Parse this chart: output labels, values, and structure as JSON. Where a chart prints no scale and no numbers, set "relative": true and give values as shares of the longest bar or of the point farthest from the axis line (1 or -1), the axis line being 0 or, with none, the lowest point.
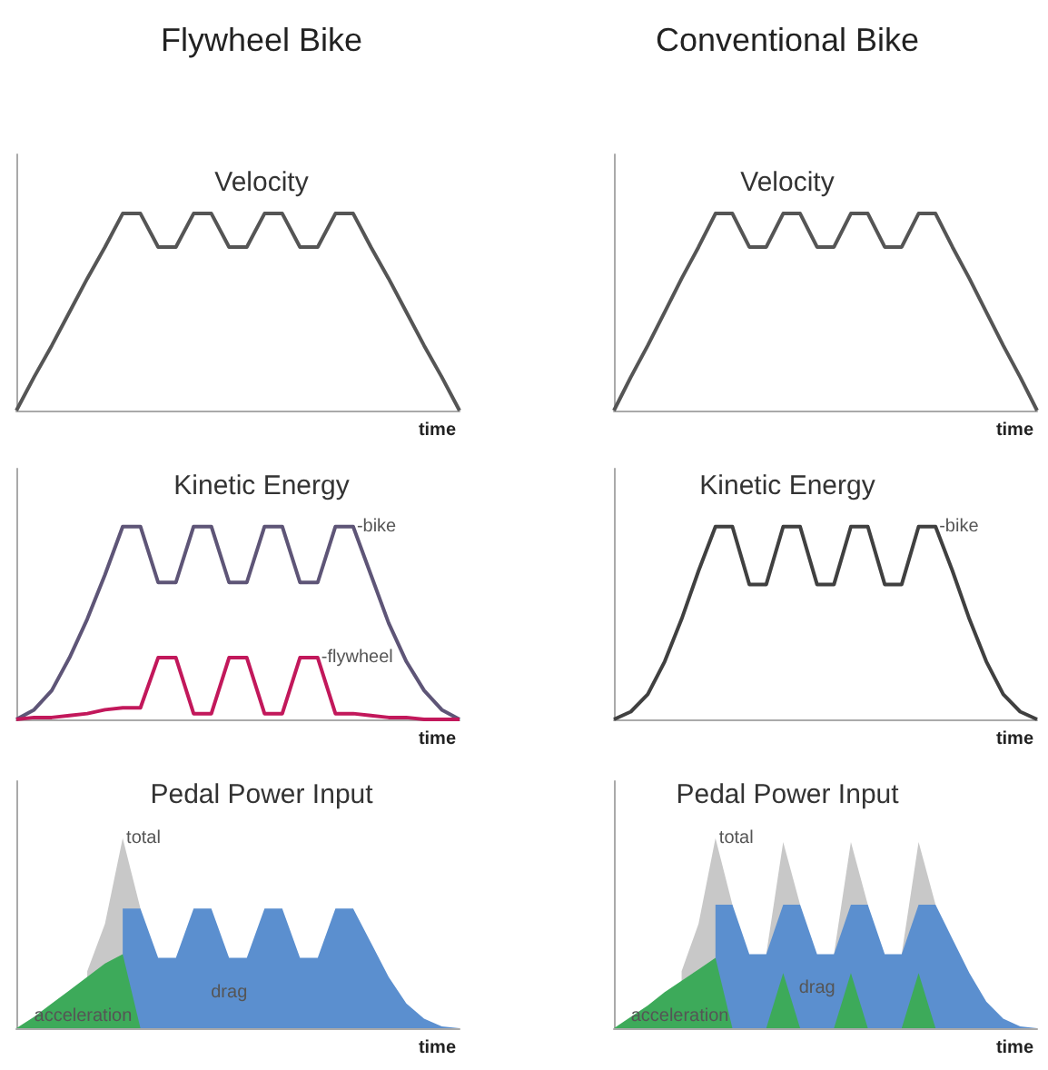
{
  "chart_data": [
    {
      "type": "line",
      "title": "Flywheel Bike",
      "subtitle": "Velocity",
      "xlabel": "time",
      "relative": true,
      "grid": false,
      "marker": "none",
      "categories": [
        null,
        null,
        null,
        null,
        null,
        null,
        null,
        null,
        null,
        null,
        null,
        null,
        null,
        null,
        null,
        null,
        null,
        null,
        null,
        null,
        null,
        null,
        null,
        null,
        null,
        null
      ],
      "series": [
        {
          "color": "#555555",
          "values": [
            0,
            0.17,
            0.33,
            0.5,
            0.67,
            0.83,
            1,
            1,
            0.83,
            0.83,
            1,
            1,
            0.83,
            0.83,
            1,
            1,
            0.83,
            0.83,
            1,
            1,
            0.83,
            0.67,
            0.5,
            0.33,
            0.17,
            0
          ]
        }
      ]
    },
    {
      "type": "line",
      "title": "Conventional Bike",
      "subtitle": "Velocity",
      "xlabel": "time",
      "relative": true,
      "grid": false,
      "marker": "none",
      "categories": [
        null,
        null,
        null,
        null,
        null,
        null,
        null,
        null,
        null,
        null,
        null,
        null,
        null,
        null,
        null,
        null,
        null,
        null,
        null,
        null,
        null,
        null,
        null,
        null,
        null,
        null
      ],
      "series": [
        {
          "color": "#555555",
          "values": [
            0,
            0.17,
            0.33,
            0.5,
            0.67,
            0.83,
            1,
            1,
            0.83,
            0.83,
            1,
            1,
            0.83,
            0.83,
            1,
            1,
            0.83,
            0.83,
            1,
            1,
            0.83,
            0.67,
            0.5,
            0.33,
            0.17,
            0
          ]
        }
      ]
    },
    {
      "type": "line",
      "title": "Kinetic Energy",
      "xlabel": "time",
      "relative": true,
      "grid": false,
      "marker": "none",
      "categories": [
        null,
        null,
        null,
        null,
        null,
        null,
        null,
        null,
        null,
        null,
        null,
        null,
        null,
        null,
        null,
        null,
        null,
        null,
        null,
        null,
        null,
        null,
        null,
        null,
        null,
        null
      ],
      "series": [
        {
          "name": "-bike",
          "color": "#5e5577",
          "values": [
            0,
            0.05,
            0.15,
            0.32,
            0.52,
            0.75,
            1,
            1,
            0.71,
            0.71,
            1,
            1,
            0.71,
            0.71,
            1,
            1,
            0.71,
            0.71,
            1,
            1,
            0.75,
            0.5,
            0.3,
            0.15,
            0.05,
            0
          ]
        },
        {
          "name": "-flywheel",
          "color": "#c2185b",
          "values": [
            0,
            0.01,
            0.01,
            0.02,
            0.03,
            0.05,
            0.06,
            0.06,
            0.32,
            0.32,
            0.03,
            0.03,
            0.32,
            0.32,
            0.03,
            0.03,
            0.32,
            0.32,
            0.03,
            0.03,
            0.02,
            0.01,
            0.01,
            0,
            0,
            0
          ]
        }
      ]
    },
    {
      "type": "line",
      "title": "Kinetic Energy",
      "xlabel": "time",
      "relative": true,
      "grid": false,
      "marker": "none",
      "categories": [
        null,
        null,
        null,
        null,
        null,
        null,
        null,
        null,
        null,
        null,
        null,
        null,
        null,
        null,
        null,
        null,
        null,
        null,
        null,
        null,
        null,
        null,
        null,
        null,
        null,
        null
      ],
      "series": [
        {
          "name": "-bike",
          "color": "#404040",
          "values": [
            0,
            0.04,
            0.13,
            0.3,
            0.52,
            0.77,
            1,
            1,
            0.7,
            0.7,
            1,
            1,
            0.7,
            0.7,
            1,
            1,
            0.7,
            0.7,
            1,
            1,
            0.77,
            0.52,
            0.3,
            0.13,
            0.04,
            0
          ]
        }
      ]
    },
    {
      "type": "area",
      "title": "Pedal Power Input",
      "xlabel": "time",
      "relative": true,
      "grid": false,
      "marker": "none",
      "categories": [
        null,
        null,
        null,
        null,
        null,
        null,
        null,
        null,
        null,
        null,
        null,
        null,
        null,
        null,
        null,
        null,
        null,
        null,
        null,
        null,
        null,
        null,
        null,
        null,
        null,
        null
      ],
      "series": [
        {
          "name": "total",
          "color": "#c8c8c8",
          "values": [
            null,
            null,
            null,
            null,
            0.3,
            0.55,
            1,
            0.63,
            null,
            null,
            null,
            null,
            null,
            null,
            null,
            null,
            null,
            null,
            null,
            null,
            null,
            null,
            null,
            null,
            null,
            null
          ]
        },
        {
          "name": "drag",
          "color": "#5b8fcf",
          "values": [
            null,
            null,
            null,
            null,
            null,
            null,
            0.63,
            0.63,
            0.37,
            0.37,
            0.63,
            0.63,
            0.37,
            0.37,
            0.63,
            0.63,
            0.37,
            0.37,
            0.63,
            0.63,
            0.45,
            0.27,
            0.13,
            0.05,
            0.01,
            0
          ]
        },
        {
          "name": "acceleration",
          "color": "#3daa5a",
          "values": [
            0,
            0.06,
            0.13,
            0.2,
            0.27,
            0.34,
            0.39,
            0,
            null,
            null,
            null,
            null,
            null,
            null,
            null,
            null,
            null,
            null,
            null,
            null,
            null,
            null,
            null,
            null,
            null,
            null
          ]
        }
      ]
    },
    {
      "type": "area",
      "title": "Pedal Power Input",
      "xlabel": "time",
      "relative": true,
      "grid": false,
      "marker": "none",
      "categories": [
        null,
        null,
        null,
        null,
        null,
        null,
        null,
        null,
        null,
        null,
        null,
        null,
        null,
        null,
        null,
        null,
        null,
        null,
        null,
        null,
        null,
        null,
        null,
        null,
        null,
        null
      ],
      "series": [
        {
          "name": "total",
          "color": "#c8c8c8",
          "values": [
            null,
            null,
            null,
            null,
            0.3,
            0.55,
            1,
            0.65,
            null,
            0.39,
            0.98,
            0.65,
            null,
            0.39,
            0.98,
            0.65,
            null,
            0.39,
            0.98,
            0.65,
            null,
            null,
            null,
            null,
            null,
            null
          ]
        },
        {
          "name": "drag",
          "color": "#5b8fcf",
          "values": [
            null,
            null,
            null,
            null,
            null,
            null,
            0.65,
            0.65,
            0.39,
            0.39,
            0.65,
            0.65,
            0.39,
            0.39,
            0.65,
            0.65,
            0.39,
            0.39,
            0.65,
            0.65,
            0.47,
            0.29,
            0.14,
            0.05,
            0.01,
            0
          ]
        },
        {
          "name": "acceleration",
          "color": "#3daa5a",
          "values": [
            0,
            0.06,
            0.12,
            0.19,
            0.25,
            0.31,
            0.37,
            0,
            null,
            0,
            0.29,
            0,
            null,
            0,
            0.29,
            0,
            null,
            0,
            0.29,
            0,
            null,
            null,
            null,
            null,
            null,
            null
          ]
        }
      ]
    }
  ]
}
